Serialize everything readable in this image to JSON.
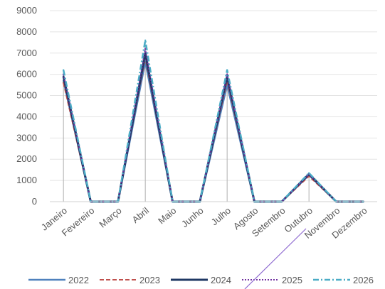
{
  "chart_data": {
    "type": "line",
    "title": "",
    "xlabel": "",
    "ylabel": "",
    "ylim": [
      0,
      9000
    ],
    "yticks": [
      0,
      1000,
      2000,
      3000,
      4000,
      5000,
      6000,
      7000,
      8000,
      9000
    ],
    "grid": "horizontal",
    "legend_position": "bottom",
    "categories": [
      "Janeiro",
      "Fevereiro",
      "Março",
      "Abril",
      "Maio",
      "Junho",
      "Julho",
      "Agosto",
      "Setembro",
      "Outubro",
      "Novembro",
      "Dezembro"
    ],
    "series": [
      {
        "name": "2022",
        "color": "#4f81bd",
        "dash": "solid",
        "values": [
          5700,
          0,
          0,
          6600,
          0,
          0,
          5500,
          0,
          0,
          1250,
          0,
          0
        ]
      },
      {
        "name": "2023",
        "color": "#c0504d",
        "dash": "dashed",
        "values": [
          5600,
          0,
          0,
          6800,
          0,
          0,
          5700,
          0,
          0,
          1200,
          0,
          0
        ]
      },
      {
        "name": "2024",
        "color": "#1f3864",
        "dash": "solid",
        "values": [
          5900,
          0,
          0,
          7000,
          0,
          0,
          5900,
          0,
          0,
          1300,
          0,
          0
        ]
      },
      {
        "name": "2025",
        "color": "#7030a0",
        "dash": "dotted",
        "values": [
          6000,
          0,
          0,
          7200,
          0,
          0,
          6000,
          0,
          0,
          1300,
          0,
          0
        ]
      },
      {
        "name": "2026",
        "color": "#4bacc6",
        "dash": "dashdot",
        "values": [
          6200,
          0,
          0,
          7600,
          0,
          0,
          6200,
          0,
          0,
          1350,
          0,
          0
        ]
      }
    ]
  }
}
